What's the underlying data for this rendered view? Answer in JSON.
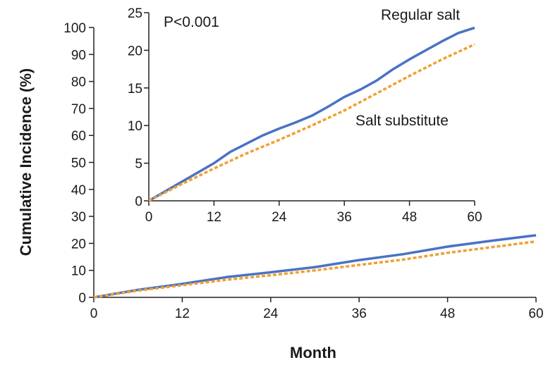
{
  "chart_data": [
    {
      "type": "line",
      "xlabel": "Month",
      "ylabel": "Cumulative Incidence (%)",
      "xlim": [
        0,
        60
      ],
      "ylim": [
        0,
        100
      ],
      "xticks": [
        0,
        12,
        24,
        36,
        48,
        60
      ],
      "yticks": [
        0,
        10,
        20,
        30,
        40,
        50,
        60,
        70,
        80,
        90,
        100
      ],
      "series": [
        {
          "name": "Regular salt",
          "color": "#4a72c4",
          "style": "solid",
          "x": [
            0,
            6,
            12,
            18,
            24,
            30,
            36,
            42,
            48,
            54,
            60
          ],
          "y": [
            0,
            2.8,
            5.0,
            7.5,
            9.3,
            11.2,
            13.8,
            16.0,
            18.8,
            21.0,
            23.0
          ]
        },
        {
          "name": "Salt substitute",
          "color": "#f0a030",
          "style": "dashed",
          "x": [
            0,
            6,
            12,
            18,
            24,
            30,
            36,
            42,
            48,
            54,
            60
          ],
          "y": [
            0,
            2.5,
            4.5,
            6.5,
            8.2,
            10.0,
            12.0,
            14.0,
            16.5,
            18.6,
            20.7
          ]
        }
      ]
    },
    {
      "type": "line",
      "xlabel": "",
      "ylabel": "",
      "xlim": [
        0,
        60
      ],
      "ylim": [
        0,
        25
      ],
      "xticks": [
        0,
        12,
        24,
        36,
        48,
        60
      ],
      "yticks": [
        0,
        5,
        10,
        15,
        20,
        25
      ],
      "annotations": [
        "P<0.001",
        "Regular salt",
        "Salt substitute"
      ],
      "series": [
        {
          "name": "Regular salt",
          "color": "#4a72c4",
          "style": "solid",
          "x": [
            0,
            6,
            12,
            15,
            18,
            21,
            24,
            27,
            30,
            33,
            36,
            39,
            42,
            45,
            48,
            51,
            54,
            57,
            60
          ],
          "y": [
            0,
            2.5,
            5.0,
            6.5,
            7.6,
            8.7,
            9.6,
            10.4,
            11.3,
            12.5,
            13.8,
            14.8,
            16.0,
            17.5,
            18.8,
            20.0,
            21.2,
            22.3,
            23.0
          ]
        },
        {
          "name": "Salt substitute",
          "color": "#f0a030",
          "style": "dashed",
          "x": [
            0,
            6,
            12,
            18,
            24,
            30,
            36,
            42,
            48,
            54,
            60
          ],
          "y": [
            0,
            2.2,
            4.3,
            6.3,
            8.1,
            10.0,
            12.0,
            14.3,
            16.6,
            18.8,
            20.8
          ]
        }
      ]
    }
  ]
}
